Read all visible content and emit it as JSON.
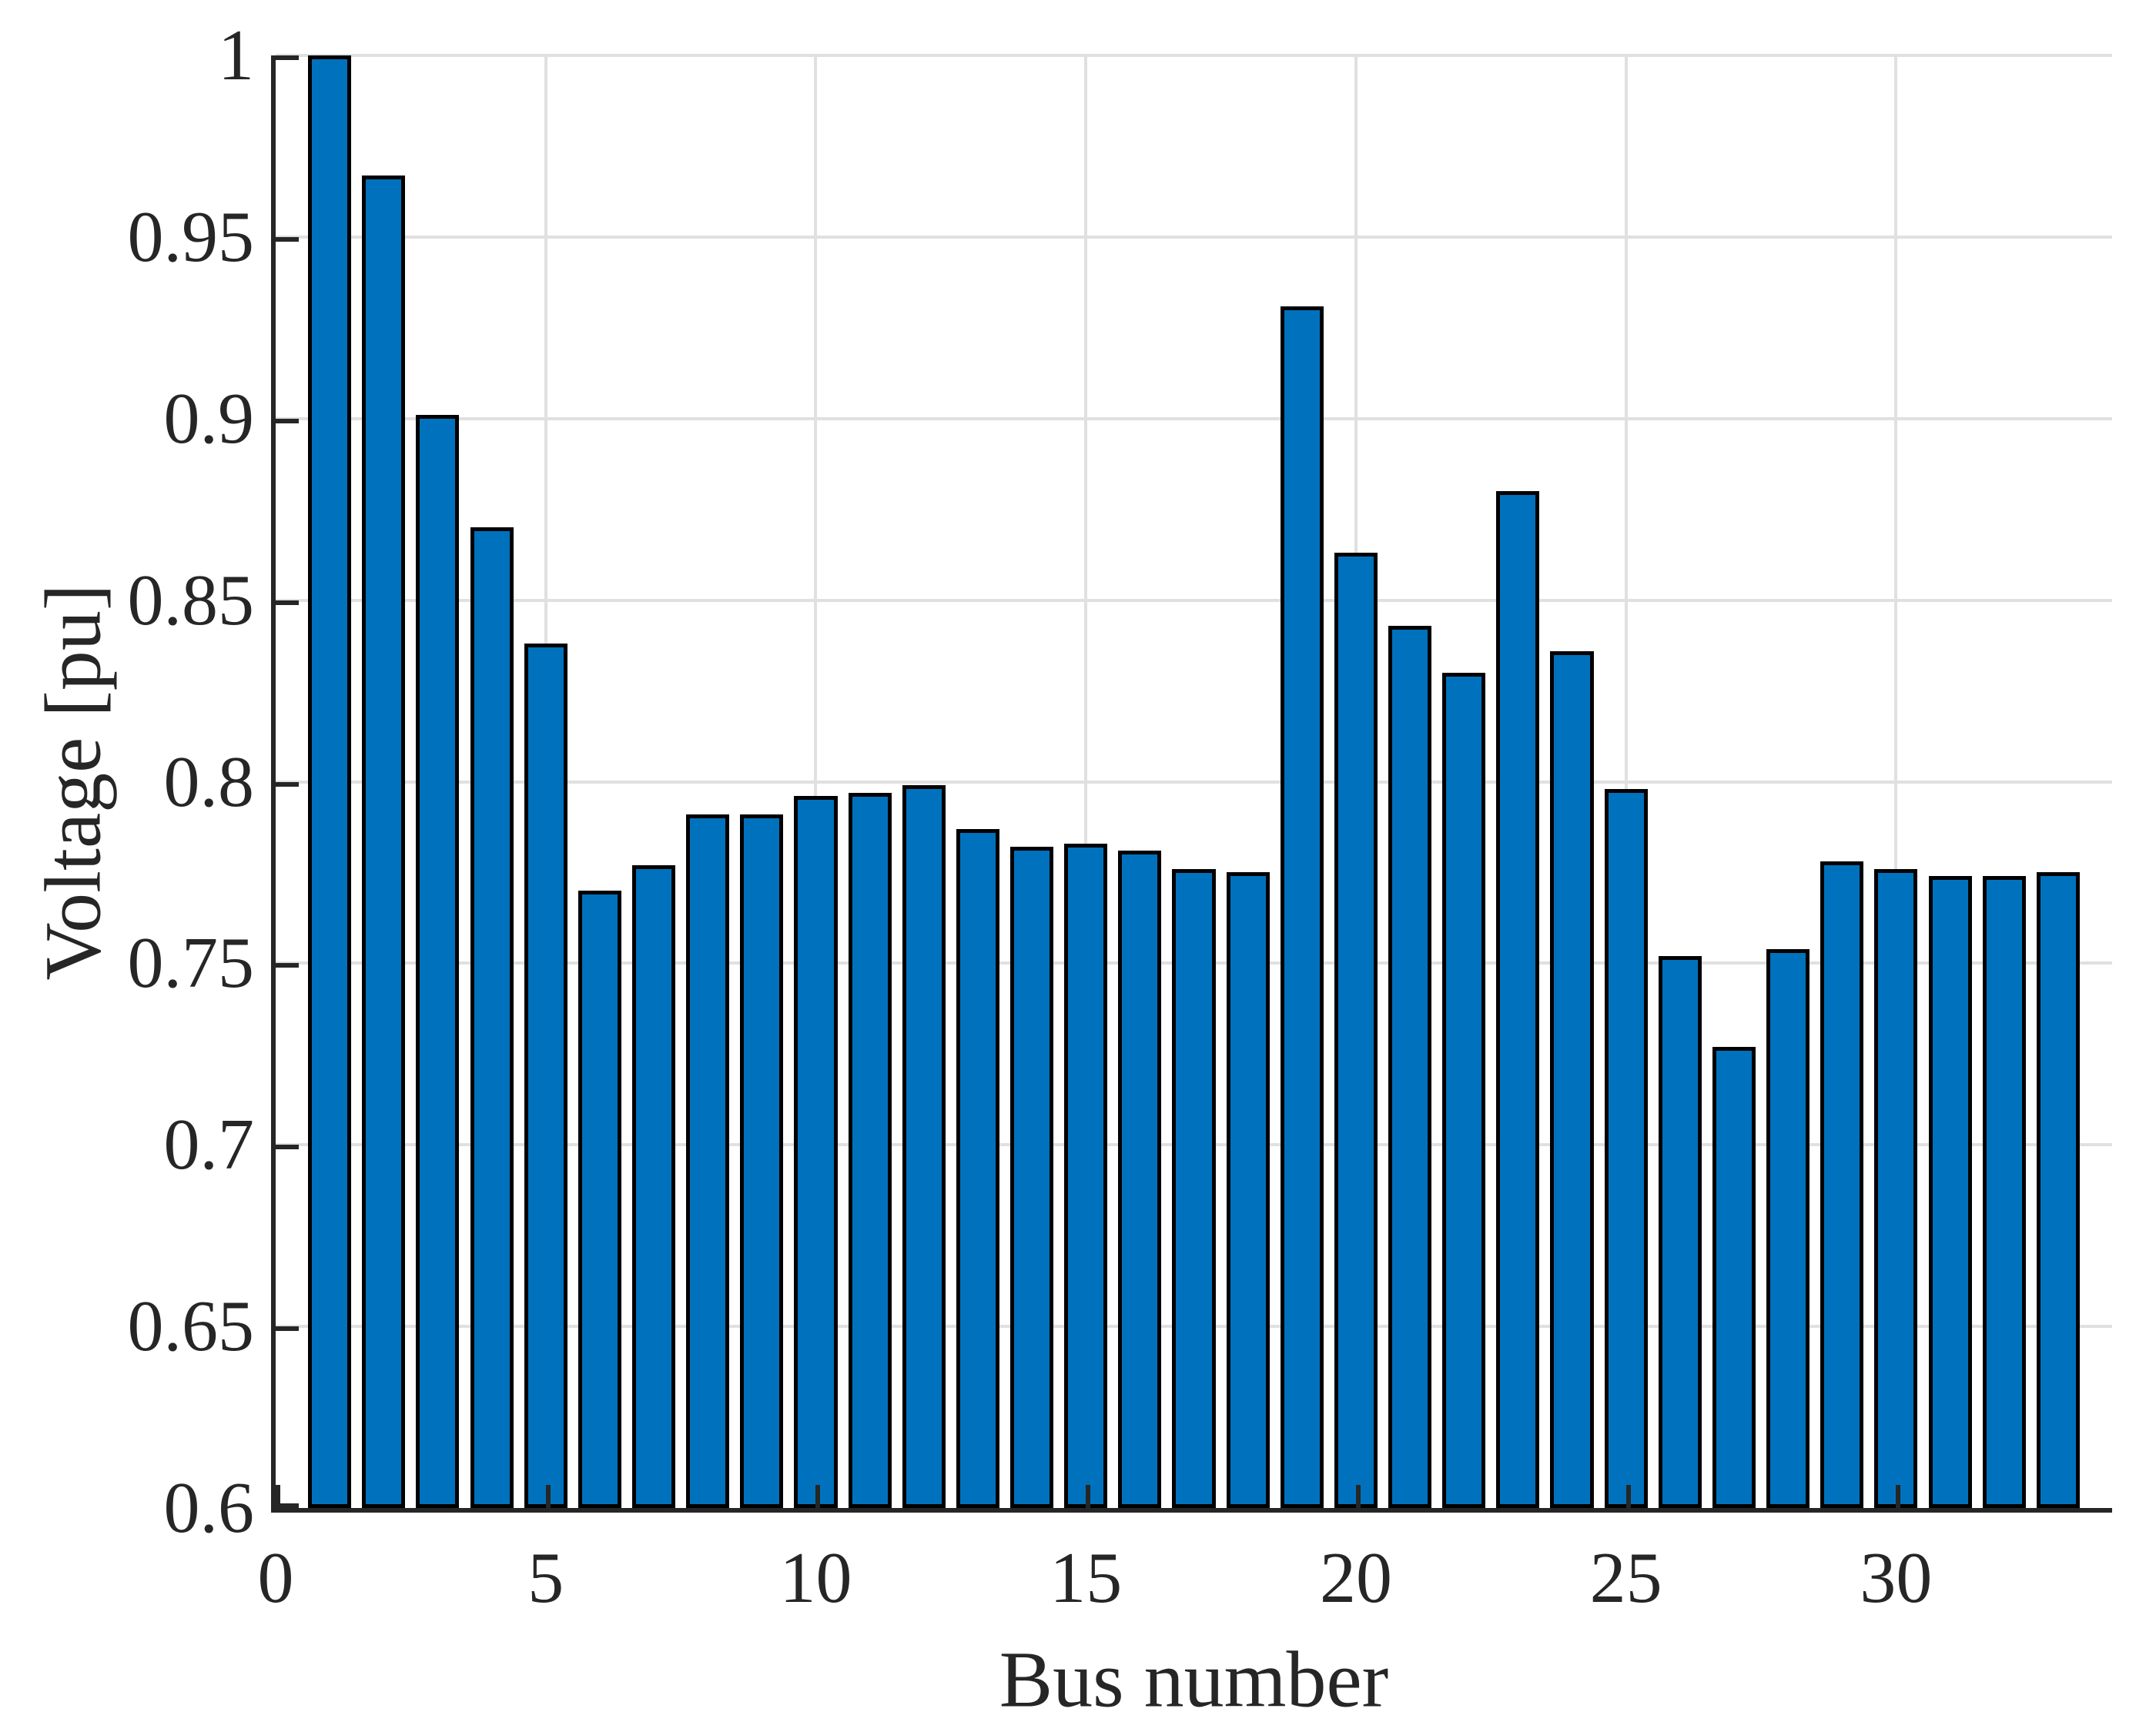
{
  "figure": {
    "background": "#ffffff",
    "text_color": "#262626"
  },
  "chart_data": {
    "type": "bar",
    "title": "",
    "xlabel": "Bus number",
    "ylabel": "Voltage [pu]",
    "categories": [
      1,
      2,
      3,
      4,
      5,
      6,
      7,
      8,
      9,
      10,
      11,
      12,
      13,
      14,
      15,
      16,
      17,
      18,
      19,
      20,
      21,
      22,
      23,
      24,
      25,
      26,
      27,
      28,
      29,
      30,
      31,
      32,
      33
    ],
    "values": [
      1.0,
      0.967,
      0.901,
      0.87,
      0.838,
      0.77,
      0.777,
      0.791,
      0.791,
      0.796,
      0.797,
      0.799,
      0.787,
      0.782,
      0.783,
      0.781,
      0.776,
      0.775,
      0.931,
      0.863,
      0.843,
      0.83,
      0.88,
      0.836,
      0.798,
      0.752,
      0.727,
      0.754,
      0.778,
      0.776,
      0.774,
      0.774,
      0.775
    ],
    "xlim": [
      0,
      34
    ],
    "ylim": [
      0.6,
      1.0
    ],
    "xticks": [
      0,
      5,
      10,
      15,
      20,
      25,
      30
    ],
    "xtick_labels": [
      "0",
      "5",
      "10",
      "15",
      "20",
      "25",
      "30"
    ],
    "yticks": [
      0.6,
      0.65,
      0.7,
      0.75,
      0.8,
      0.85,
      0.9,
      0.95,
      1.0
    ],
    "ytick_labels": [
      "0.6",
      "0.65",
      "0.7",
      "0.75",
      "0.8",
      "0.85",
      "0.9",
      "0.95",
      "1"
    ],
    "grid": true,
    "legend": null,
    "bar_width_fraction": 0.8,
    "bar_color": "#0072bd",
    "bar_edge_color": "#000000",
    "grid_color": "#e0e0e0",
    "axis_color": "#262626"
  }
}
